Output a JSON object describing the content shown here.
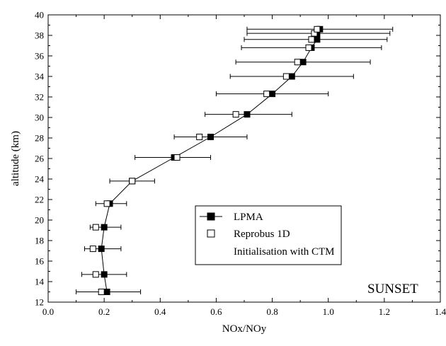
{
  "chart_data": {
    "type": "scatter",
    "xlabel": "NOx/NOy",
    "ylabel": "altitude (km)",
    "xlim": [
      0.0,
      1.4
    ],
    "ylim": [
      12,
      40
    ],
    "xticks": [
      0.0,
      0.2,
      0.4,
      0.6,
      0.8,
      1.0,
      1.2,
      1.4
    ],
    "xtick_labels": [
      "0.0",
      "0.2",
      "0.4",
      "0.6",
      "0.8",
      "1.0",
      "1.2",
      "1.4"
    ],
    "yticks": [
      12,
      14,
      16,
      18,
      20,
      22,
      24,
      26,
      28,
      30,
      32,
      34,
      36,
      38,
      40
    ],
    "ytick_labels": [
      "12",
      "14",
      "16",
      "18",
      "20",
      "22",
      "24",
      "26",
      "28",
      "30",
      "32",
      "34",
      "36",
      "38",
      "40"
    ],
    "grid": false,
    "legend_position": "center-right",
    "annotation": "SUNSET",
    "series": [
      {
        "name": "LPMA",
        "marker": "filled-square",
        "line": true,
        "points": [
          {
            "x": 0.21,
            "y": 13.0,
            "xmin": 0.1,
            "xmax": 0.33
          },
          {
            "x": 0.2,
            "y": 14.7,
            "xmin": 0.12,
            "xmax": 0.28
          },
          {
            "x": 0.19,
            "y": 17.2,
            "xmin": 0.13,
            "xmax": 0.26
          },
          {
            "x": 0.2,
            "y": 19.3,
            "xmin": 0.15,
            "xmax": 0.26
          },
          {
            "x": 0.22,
            "y": 21.6,
            "xmin": 0.17,
            "xmax": 0.28
          },
          {
            "x": 0.3,
            "y": 23.8,
            "xmin": 0.22,
            "xmax": 0.38
          },
          {
            "x": 0.45,
            "y": 26.1,
            "xmin": 0.31,
            "xmax": 0.58
          },
          {
            "x": 0.58,
            "y": 28.1,
            "xmin": 0.45,
            "xmax": 0.71
          },
          {
            "x": 0.71,
            "y": 30.3,
            "xmin": 0.56,
            "xmax": 0.87
          },
          {
            "x": 0.8,
            "y": 32.3,
            "xmin": 0.6,
            "xmax": 1.0
          },
          {
            "x": 0.87,
            "y": 34.0,
            "xmin": 0.65,
            "xmax": 1.09
          },
          {
            "x": 0.91,
            "y": 35.4,
            "xmin": 0.67,
            "xmax": 1.15
          },
          {
            "x": 0.94,
            "y": 36.8,
            "xmin": 0.69,
            "xmax": 1.19
          },
          {
            "x": 0.96,
            "y": 37.6,
            "xmin": 0.7,
            "xmax": 1.21
          },
          {
            "x": 0.96,
            "y": 38.2,
            "xmin": 0.71,
            "xmax": 1.22
          },
          {
            "x": 0.97,
            "y": 38.6,
            "xmin": 0.71,
            "xmax": 1.23
          }
        ]
      },
      {
        "name": "Reprobus 1D",
        "marker": "open-square",
        "line": false,
        "points": [
          {
            "x": 0.19,
            "y": 13.0
          },
          {
            "x": 0.17,
            "y": 14.7
          },
          {
            "x": 0.16,
            "y": 17.2
          },
          {
            "x": 0.17,
            "y": 19.3
          },
          {
            "x": 0.21,
            "y": 21.6
          },
          {
            "x": 0.3,
            "y": 23.8
          },
          {
            "x": 0.46,
            "y": 26.1
          },
          {
            "x": 0.54,
            "y": 28.1
          },
          {
            "x": 0.67,
            "y": 30.3
          },
          {
            "x": 0.78,
            "y": 32.3
          },
          {
            "x": 0.85,
            "y": 34.0
          },
          {
            "x": 0.89,
            "y": 35.4
          },
          {
            "x": 0.93,
            "y": 36.8
          },
          {
            "x": 0.94,
            "y": 37.6
          },
          {
            "x": 0.95,
            "y": 38.2
          },
          {
            "x": 0.96,
            "y": 38.6
          }
        ]
      }
    ],
    "legend": {
      "entries": [
        "LPMA",
        "Reprobus 1D"
      ],
      "extra_text": "Initialisation with CTM"
    }
  }
}
